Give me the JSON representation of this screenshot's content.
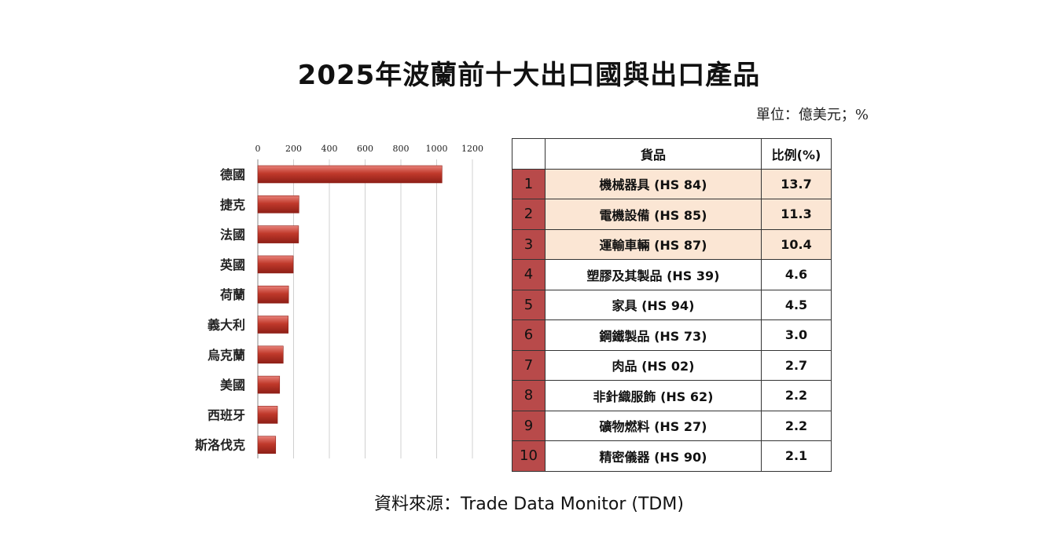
{
  "title": "2025年波蘭前十大出口國與出口產品",
  "unit_note": "單位：億美元；%",
  "source_note": "資料來源：Trade Data Monitor (TDM)",
  "colors": {
    "bar": "#c0392b",
    "rank_cell": "#b84a4a",
    "highlight": "#fbe6d4"
  },
  "chart_data": {
    "type": "bar",
    "orientation": "horizontal",
    "categories": [
      "德國",
      "捷克",
      "法國",
      "英國",
      "荷蘭",
      "義大利",
      "烏克蘭",
      "美國",
      "西班牙",
      "斯洛伐克"
    ],
    "values": [
      1030,
      230,
      228,
      198,
      172,
      170,
      142,
      122,
      110,
      100
    ],
    "xlim": [
      0,
      1200
    ],
    "xticks": [
      0,
      200,
      400,
      600,
      800,
      1000,
      1200
    ],
    "xtick_labels": [
      "0",
      "200",
      "400",
      "600",
      "800",
      "1000",
      "1200"
    ],
    "grid": true
  },
  "table": {
    "headers": [
      "",
      "貨品",
      "比例(%)"
    ],
    "rows": [
      {
        "rank": "1",
        "item": "機械器具 (HS 84)",
        "share": "13.7",
        "highlight": true
      },
      {
        "rank": "2",
        "item": "電機設備 (HS 85)",
        "share": "11.3",
        "highlight": true
      },
      {
        "rank": "3",
        "item": "運輸車輛 (HS 87)",
        "share": "10.4",
        "highlight": true
      },
      {
        "rank": "4",
        "item": "塑膠及其製品 (HS 39)",
        "share": "4.6",
        "highlight": false
      },
      {
        "rank": "5",
        "item": "家具 (HS 94)",
        "share": "4.5",
        "highlight": false
      },
      {
        "rank": "6",
        "item": "鋼鐵製品 (HS 73)",
        "share": "3.0",
        "highlight": false
      },
      {
        "rank": "7",
        "item": "肉品 (HS 02)",
        "share": "2.7",
        "highlight": false
      },
      {
        "rank": "8",
        "item": "非針織服飾 (HS 62)",
        "share": "2.2",
        "highlight": false
      },
      {
        "rank": "9",
        "item": "礦物燃料 (HS 27)",
        "share": "2.2",
        "highlight": false
      },
      {
        "rank": "10",
        "item": "精密儀器 (HS 90)",
        "share": "2.1",
        "highlight": false
      }
    ]
  }
}
